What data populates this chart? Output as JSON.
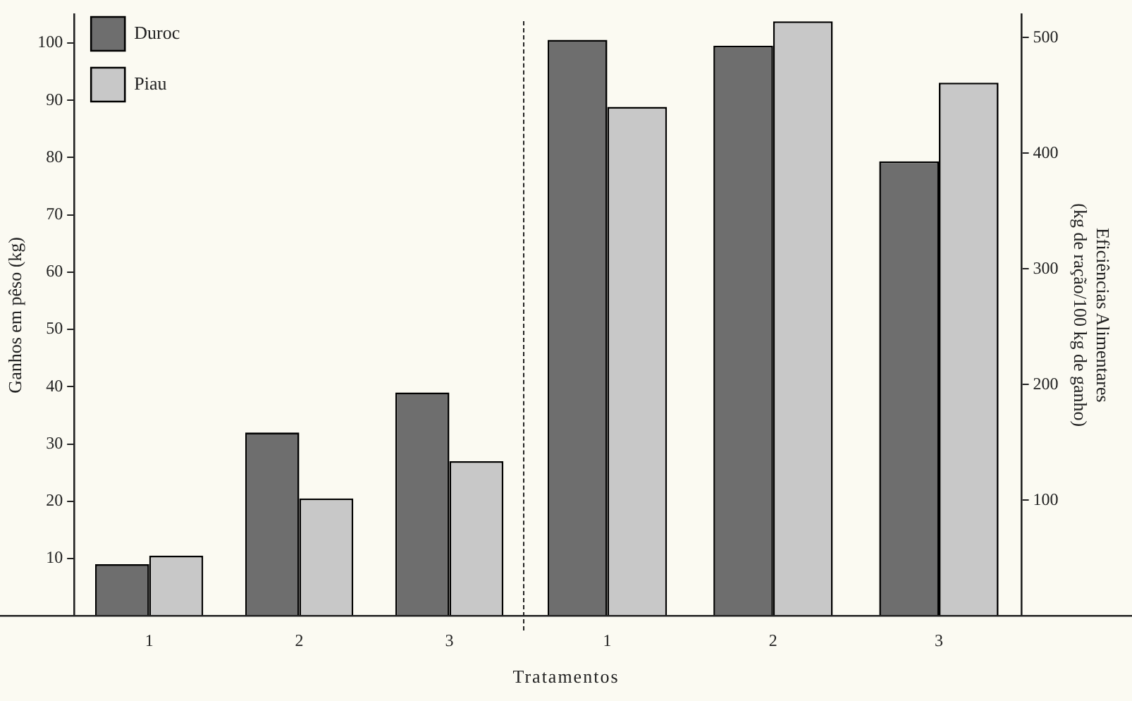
{
  "chart_data": [
    {
      "type": "bar",
      "ylabel": "Ganhos em pêso (kg)",
      "xlabel": "Tratamentos",
      "categories": [
        "1",
        "2",
        "3"
      ],
      "ylim": [
        0,
        105
      ],
      "yticks": [
        10,
        20,
        30,
        40,
        50,
        60,
        70,
        80,
        90,
        100
      ],
      "grid": false,
      "legend": "top left",
      "series": [
        {
          "name": "Duroc",
          "color": "#6e6e6e",
          "values": [
            9,
            32,
            39
          ]
        },
        {
          "name": "Piau",
          "color": "#c8c8c8",
          "values": [
            10.5,
            20.5,
            27
          ]
        }
      ]
    },
    {
      "type": "bar",
      "y2label": "Eficiências Alimentares\n(kg de ração/100 kg de ganho)",
      "categories": [
        "1",
        "2",
        "3"
      ],
      "y2lim": [
        0,
        520
      ],
      "y2ticks": [
        100,
        200,
        300,
        400,
        500
      ],
      "grid": false,
      "series": [
        {
          "color": "#6e6e6e",
          "axis": "y2",
          "values": [
            498,
            493,
            393
          ]
        },
        {
          "color": "#c8c8c8",
          "axis": "y2",
          "values": [
            440,
            514,
            461
          ]
        }
      ]
    }
  ]
}
